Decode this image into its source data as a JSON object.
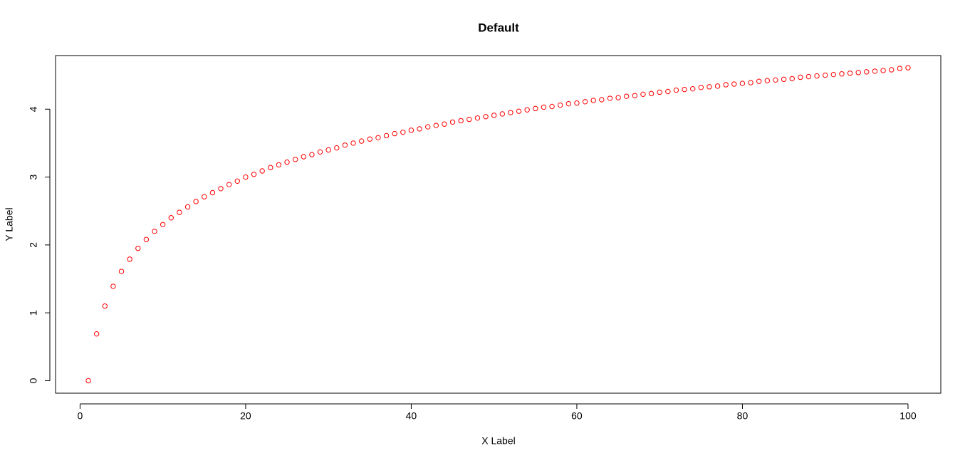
{
  "chart_data": {
    "type": "scatter",
    "title": "Default",
    "x_label": "X Label",
    "y_label": "Y Label",
    "x": [
      1,
      2,
      3,
      4,
      5,
      6,
      7,
      8,
      9,
      10,
      11,
      12,
      13,
      14,
      15,
      16,
      17,
      18,
      19,
      20,
      21,
      22,
      23,
      24,
      25,
      26,
      27,
      28,
      29,
      30,
      31,
      32,
      33,
      34,
      35,
      36,
      37,
      38,
      39,
      40,
      41,
      42,
      43,
      44,
      45,
      46,
      47,
      48,
      49,
      50,
      51,
      52,
      53,
      54,
      55,
      56,
      57,
      58,
      59,
      60,
      61,
      62,
      63,
      64,
      65,
      66,
      67,
      68,
      69,
      70,
      71,
      72,
      73,
      74,
      75,
      76,
      77,
      78,
      79,
      80,
      81,
      82,
      83,
      84,
      85,
      86,
      87,
      88,
      89,
      90,
      91,
      92,
      93,
      94,
      95,
      96,
      97,
      98,
      99,
      100
    ],
    "values": [
      0,
      0.69,
      1.1,
      1.39,
      1.61,
      1.79,
      1.95,
      2.08,
      2.2,
      2.3,
      2.4,
      2.48,
      2.56,
      2.64,
      2.71,
      2.77,
      2.83,
      2.89,
      2.94,
      3.0,
      3.04,
      3.09,
      3.14,
      3.18,
      3.22,
      3.26,
      3.3,
      3.33,
      3.37,
      3.4,
      3.43,
      3.47,
      3.5,
      3.53,
      3.56,
      3.58,
      3.61,
      3.64,
      3.66,
      3.69,
      3.71,
      3.74,
      3.76,
      3.78,
      3.81,
      3.83,
      3.85,
      3.87,
      3.89,
      3.91,
      3.93,
      3.95,
      3.97,
      3.99,
      4.01,
      4.03,
      4.04,
      4.06,
      4.08,
      4.09,
      4.11,
      4.13,
      4.14,
      4.16,
      4.17,
      4.19,
      4.2,
      4.22,
      4.23,
      4.25,
      4.26,
      4.28,
      4.29,
      4.3,
      4.32,
      4.33,
      4.34,
      4.36,
      4.37,
      4.38,
      4.39,
      4.41,
      4.42,
      4.43,
      4.44,
      4.45,
      4.47,
      4.48,
      4.49,
      4.5,
      4.51,
      4.52,
      4.53,
      4.54,
      4.55,
      4.56,
      4.57,
      4.58,
      4.6,
      4.61
    ],
    "color": "#ff0000",
    "xlim": [
      -2.96,
      103.96
    ],
    "ylim": [
      -0.184,
      4.79
    ],
    "xticks": [
      0,
      20,
      40,
      60,
      80,
      100
    ],
    "yticks": [
      0,
      1,
      2,
      3,
      4
    ]
  }
}
